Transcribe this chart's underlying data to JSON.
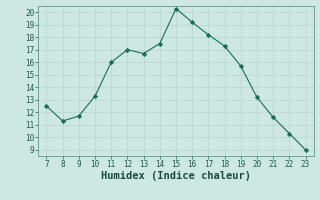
{
  "x": [
    7,
    8,
    9,
    10,
    11,
    12,
    13,
    14,
    15,
    16,
    17,
    18,
    19,
    20,
    21,
    22,
    23
  ],
  "y": [
    12.5,
    11.3,
    11.7,
    13.3,
    16.0,
    17.0,
    16.7,
    17.5,
    20.3,
    19.2,
    18.2,
    17.3,
    15.7,
    13.2,
    11.6,
    10.3,
    9.0
  ],
  "line_color": "#1a6b5a",
  "marker": "D",
  "marker_size": 2.2,
  "bg_color": "#cde8e2",
  "grid_color": "#b8d4ce",
  "xlabel": "Humidex (Indice chaleur)",
  "xlim": [
    6.5,
    23.5
  ],
  "ylim": [
    8.5,
    20.5
  ],
  "xticks": [
    7,
    8,
    9,
    10,
    11,
    12,
    13,
    14,
    15,
    16,
    17,
    18,
    19,
    20,
    21,
    22,
    23
  ],
  "yticks": [
    9,
    10,
    11,
    12,
    13,
    14,
    15,
    16,
    17,
    18,
    19,
    20
  ],
  "tick_fontsize": 5.5,
  "xlabel_fontsize": 7.5,
  "xlabel_fontweight": "bold"
}
